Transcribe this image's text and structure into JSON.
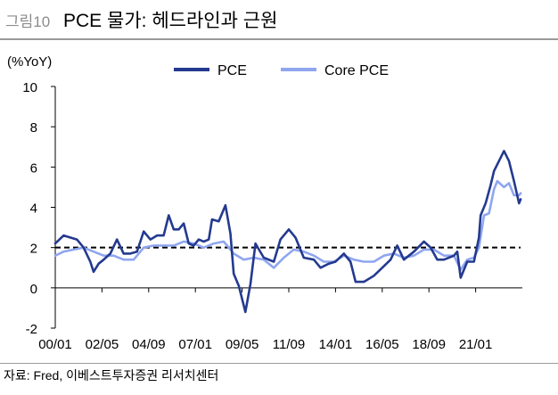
{
  "header": {
    "figure_number": "그림10",
    "title": "PCE 물가: 헤드라인과 근원"
  },
  "footer": {
    "source": "자료: Fred, 이베스트투자증권 리서치센터"
  },
  "colors": {
    "pce": "#243a8f",
    "core_pce": "#8fa6ef",
    "reference_line": "#000000",
    "axis": "#000000",
    "rule": "#9a9a9a"
  },
  "chart_data": {
    "type": "line",
    "unit_label": "(%YoY)",
    "xlabel": "",
    "ylabel": "",
    "ylim": [
      -2,
      10
    ],
    "yticks": [
      -2,
      0,
      2,
      4,
      6,
      8,
      10
    ],
    "xlim": [
      "2000-01",
      "2023-05"
    ],
    "x_tick_labels": [
      "00/01",
      "02/05",
      "04/09",
      "07/01",
      "09/05",
      "11/09",
      "14/01",
      "16/05",
      "18/09",
      "21/01"
    ],
    "x_ticks": [
      "2000-01",
      "2002-05",
      "2004-09",
      "2007-01",
      "2009-05",
      "2011-09",
      "2014-01",
      "2016-05",
      "2018-09",
      "2021-01"
    ],
    "grid": false,
    "legend_position": "top-center",
    "reference_line": {
      "y": 2,
      "style": "dashed"
    },
    "series": [
      {
        "name": "PCE",
        "points": [
          [
            "2000-01",
            2.2
          ],
          [
            "2000-06",
            2.6
          ],
          [
            "2000-10",
            2.5
          ],
          [
            "2001-02",
            2.4
          ],
          [
            "2001-06",
            2.0
          ],
          [
            "2001-10",
            1.3
          ],
          [
            "2001-12",
            0.8
          ],
          [
            "2002-03",
            1.2
          ],
          [
            "2002-06",
            1.4
          ],
          [
            "2002-10",
            1.7
          ],
          [
            "2003-02",
            2.4
          ],
          [
            "2003-06",
            1.7
          ],
          [
            "2003-10",
            1.7
          ],
          [
            "2004-02",
            1.8
          ],
          [
            "2004-06",
            2.8
          ],
          [
            "2004-10",
            2.4
          ],
          [
            "2005-02",
            2.6
          ],
          [
            "2005-06",
            2.6
          ],
          [
            "2005-09",
            3.6
          ],
          [
            "2005-12",
            2.9
          ],
          [
            "2006-03",
            2.9
          ],
          [
            "2006-06",
            3.2
          ],
          [
            "2006-09",
            2.2
          ],
          [
            "2006-12",
            2.1
          ],
          [
            "2007-03",
            2.4
          ],
          [
            "2007-06",
            2.3
          ],
          [
            "2007-09",
            2.4
          ],
          [
            "2007-11",
            3.4
          ],
          [
            "2008-03",
            3.3
          ],
          [
            "2008-07",
            4.1
          ],
          [
            "2008-10",
            2.7
          ],
          [
            "2008-12",
            0.7
          ],
          [
            "2009-03",
            0.1
          ],
          [
            "2009-07",
            -1.2
          ],
          [
            "2009-10",
            0.2
          ],
          [
            "2010-01",
            2.2
          ],
          [
            "2010-06",
            1.5
          ],
          [
            "2010-12",
            1.3
          ],
          [
            "2011-04",
            2.4
          ],
          [
            "2011-09",
            2.9
          ],
          [
            "2012-01",
            2.5
          ],
          [
            "2012-06",
            1.5
          ],
          [
            "2012-12",
            1.4
          ],
          [
            "2013-04",
            1.0
          ],
          [
            "2013-09",
            1.2
          ],
          [
            "2014-01",
            1.3
          ],
          [
            "2014-06",
            1.7
          ],
          [
            "2014-10",
            1.3
          ],
          [
            "2015-01",
            0.3
          ],
          [
            "2015-06",
            0.3
          ],
          [
            "2015-12",
            0.6
          ],
          [
            "2016-05",
            1.0
          ],
          [
            "2016-10",
            1.4
          ],
          [
            "2017-02",
            2.1
          ],
          [
            "2017-06",
            1.4
          ],
          [
            "2017-12",
            1.8
          ],
          [
            "2018-06",
            2.3
          ],
          [
            "2018-10",
            2.0
          ],
          [
            "2019-02",
            1.4
          ],
          [
            "2019-06",
            1.4
          ],
          [
            "2019-12",
            1.6
          ],
          [
            "2020-02",
            1.8
          ],
          [
            "2020-04",
            0.5
          ],
          [
            "2020-08",
            1.3
          ],
          [
            "2020-12",
            1.3
          ],
          [
            "2021-03",
            2.5
          ],
          [
            "2021-04",
            3.6
          ],
          [
            "2021-07",
            4.2
          ],
          [
            "2021-10",
            5.1
          ],
          [
            "2021-12",
            5.8
          ],
          [
            "2022-03",
            6.3
          ],
          [
            "2022-06",
            6.8
          ],
          [
            "2022-09",
            6.3
          ],
          [
            "2022-12",
            5.3
          ],
          [
            "2023-03",
            4.2
          ],
          [
            "2023-04",
            4.4
          ]
        ]
      },
      {
        "name": "Core PCE",
        "points": [
          [
            "2000-01",
            1.6
          ],
          [
            "2000-06",
            1.8
          ],
          [
            "2000-12",
            1.9
          ],
          [
            "2001-06",
            2.0
          ],
          [
            "2001-12",
            1.8
          ],
          [
            "2002-06",
            1.6
          ],
          [
            "2002-12",
            1.6
          ],
          [
            "2003-06",
            1.4
          ],
          [
            "2003-12",
            1.4
          ],
          [
            "2004-06",
            2.0
          ],
          [
            "2004-12",
            2.1
          ],
          [
            "2005-06",
            2.1
          ],
          [
            "2005-12",
            2.1
          ],
          [
            "2006-06",
            2.3
          ],
          [
            "2006-12",
            2.2
          ],
          [
            "2007-06",
            2.0
          ],
          [
            "2007-12",
            2.2
          ],
          [
            "2008-06",
            2.3
          ],
          [
            "2008-12",
            1.7
          ],
          [
            "2009-06",
            1.4
          ],
          [
            "2009-12",
            1.5
          ],
          [
            "2010-06",
            1.4
          ],
          [
            "2010-12",
            1.0
          ],
          [
            "2011-06",
            1.5
          ],
          [
            "2011-12",
            1.9
          ],
          [
            "2012-06",
            1.8
          ],
          [
            "2012-12",
            1.6
          ],
          [
            "2013-06",
            1.3
          ],
          [
            "2013-12",
            1.3
          ],
          [
            "2014-06",
            1.6
          ],
          [
            "2014-12",
            1.4
          ],
          [
            "2015-06",
            1.3
          ],
          [
            "2015-12",
            1.3
          ],
          [
            "2016-06",
            1.6
          ],
          [
            "2016-12",
            1.7
          ],
          [
            "2017-06",
            1.5
          ],
          [
            "2017-12",
            1.6
          ],
          [
            "2018-06",
            1.9
          ],
          [
            "2018-12",
            1.9
          ],
          [
            "2019-06",
            1.6
          ],
          [
            "2019-12",
            1.6
          ],
          [
            "2020-04",
            0.9
          ],
          [
            "2020-08",
            1.4
          ],
          [
            "2020-12",
            1.5
          ],
          [
            "2021-03",
            2.0
          ],
          [
            "2021-06",
            3.6
          ],
          [
            "2021-09",
            3.7
          ],
          [
            "2021-12",
            4.9
          ],
          [
            "2022-02",
            5.3
          ],
          [
            "2022-06",
            5.0
          ],
          [
            "2022-09",
            5.2
          ],
          [
            "2022-12",
            4.6
          ],
          [
            "2023-03",
            4.6
          ],
          [
            "2023-04",
            4.7
          ]
        ]
      }
    ]
  }
}
